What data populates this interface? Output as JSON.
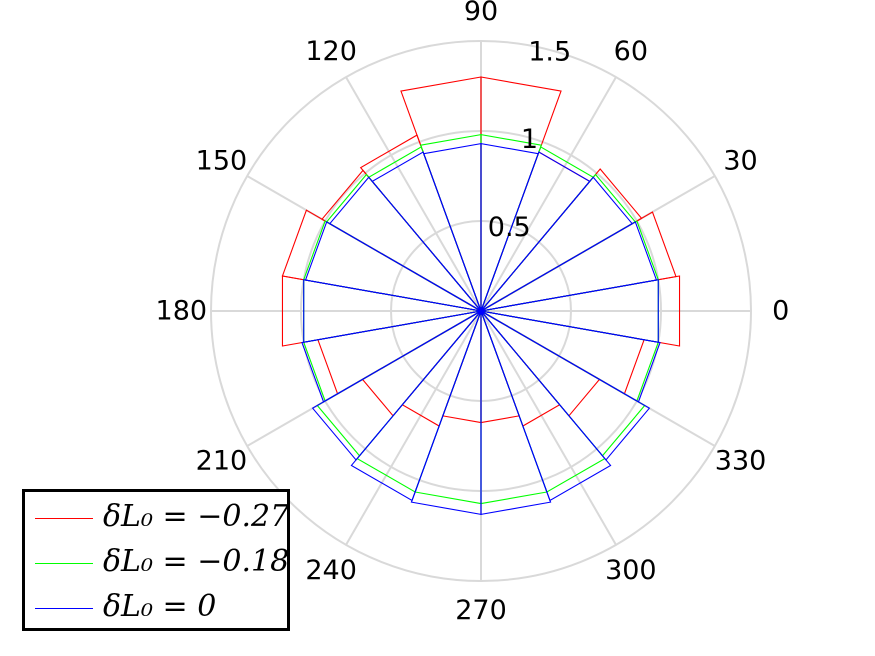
{
  "chart_data": {
    "type": "polar",
    "angle_ticks": [
      "0",
      "30",
      "60",
      "90",
      "120",
      "150",
      "180",
      "210",
      "240",
      "270",
      "300",
      "330"
    ],
    "radial_ticks": [
      "0.5",
      "1",
      "1.5"
    ],
    "radial_tick_values": [
      0.5,
      1.0,
      1.5
    ],
    "rmax": 1.5,
    "grid": true,
    "sector_width_deg": 20,
    "sector_centers_deg": [
      0,
      20,
      40,
      60,
      80,
      100,
      120,
      140,
      160,
      180,
      200,
      220,
      240,
      260,
      280,
      300,
      320,
      340
    ],
    "legend_placement": "bottom-left",
    "series": [
      {
        "name": "δ_{L_0} = −0.27",
        "color": "#ff0000",
        "values": [
          1.12,
          1.1,
          1.03,
          0.94,
          1.3,
          1.3,
          1.04,
          1.02,
          1.12,
          1.12,
          0.92,
          0.76,
          0.68,
          0.62,
          0.62,
          0.68,
          0.76,
          0.92
        ]
      },
      {
        "name": "δ_{L_0} = −0.18",
        "color": "#00ff00",
        "values": [
          1.0,
          1.0,
          0.99,
          0.97,
          0.98,
          0.98,
          0.97,
          0.99,
          1.0,
          1.0,
          1.0,
          1.05,
          1.07,
          1.07,
          1.07,
          1.07,
          1.05,
          1.0
        ]
      },
      {
        "name": "δ_{L_0} = 0",
        "color": "#0000ff",
        "values": [
          1.0,
          0.99,
          0.97,
          0.94,
          0.93,
          0.93,
          0.94,
          0.97,
          0.99,
          1.0,
          1.01,
          1.08,
          1.12,
          1.13,
          1.13,
          1.12,
          1.08,
          1.01
        ]
      }
    ]
  },
  "legend": {
    "items": [
      {
        "label": "δL₀ = −0.27",
        "color": "#ff0000"
      },
      {
        "label": "δL₀ = −0.18",
        "color": "#00ff00"
      },
      {
        "label": "δL₀ = 0",
        "color": "#0000ff"
      }
    ]
  }
}
